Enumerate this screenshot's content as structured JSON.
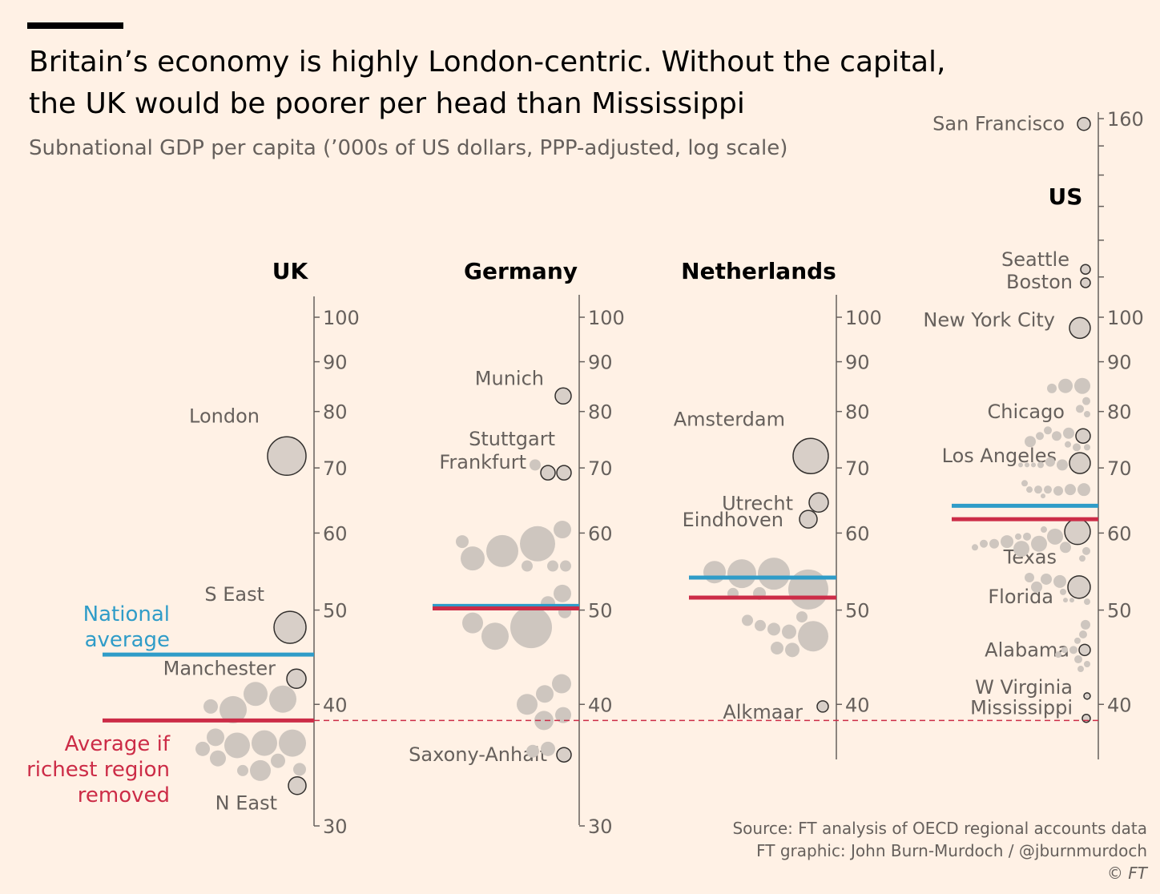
{
  "header": {
    "title": "Britain’s economy is highly London-centric. Without the capital, the UK would be poorer per head than Mississippi",
    "subtitle": "Subnational GDP per capita (’000s of US dollars, PPP-adjusted, log scale)"
  },
  "source": {
    "line1": "Source: FT analysis of OECD regional accounts data",
    "line2": "FT graphic: John Burn-Murdoch / @jburnmurdoch",
    "line3": "© FT"
  },
  "colors": {
    "background": "#FFF1E5",
    "national_average": "#2F9CC8",
    "average_without_richest": "#CC2C47",
    "bubble_labelled": "#D8CFC8",
    "bubble_unlabelled": "#CEC6BF",
    "axis": "#66605C"
  },
  "chart_data": {
    "type": "scatter",
    "scale": "log",
    "legend": {
      "national_average": "National average",
      "average_without_richest": "Average if richest region removed"
    },
    "reference_line": {
      "value": 38.5,
      "style": "dashed",
      "color": "#CC2C47"
    },
    "panels": [
      {
        "name": "UK",
        "ticks": [
          100,
          90,
          80,
          70,
          60,
          50,
          40,
          30
        ],
        "ylim": [
          30,
          100
        ],
        "national_average": 45,
        "average_without_richest": 38.5,
        "labelled": [
          {
            "label": "London",
            "value": 72,
            "size": 24
          },
          {
            "label": "S East",
            "value": 48,
            "size": 20
          },
          {
            "label": "Manchester",
            "value": 42.5,
            "size": 12
          },
          {
            "label": "N East",
            "value": 33,
            "size": 11
          }
        ],
        "regions": [
          {
            "value": 40.5,
            "size": 17
          },
          {
            "value": 41,
            "size": 15
          },
          {
            "value": 39.5,
            "size": 17
          },
          {
            "value": 39.8,
            "size": 9
          },
          {
            "value": 36.5,
            "size": 17
          },
          {
            "value": 36.5,
            "size": 16
          },
          {
            "value": 36.3,
            "size": 16
          },
          {
            "value": 37,
            "size": 11
          },
          {
            "value": 36,
            "size": 9
          },
          {
            "value": 35.2,
            "size": 10
          },
          {
            "value": 35,
            "size": 9
          },
          {
            "value": 34.2,
            "size": 13
          },
          {
            "value": 34.3,
            "size": 8
          },
          {
            "value": 34.2,
            "size": 7
          }
        ]
      },
      {
        "name": "Germany",
        "ticks": [
          100,
          90,
          80,
          70,
          60,
          50,
          40,
          30
        ],
        "ylim": [
          30,
          100
        ],
        "national_average": 50.5,
        "average_without_richest": 50.2,
        "labelled": [
          {
            "label": "Munich",
            "value": 83,
            "size": 10
          },
          {
            "label": "Stuttgart",
            "value": 69.2,
            "size": 9
          },
          {
            "label": "Frankfurt",
            "value": 69.2,
            "size": 9
          }
        ],
        "lowest": {
          "label": "Saxony-Anhalt",
          "value": 35.5,
          "size": 9
        },
        "regions": [
          {
            "value": 70.5,
            "size": 7
          },
          {
            "value": 60.5,
            "size": 11
          },
          {
            "value": 58.5,
            "size": 22
          },
          {
            "value": 57.5,
            "size": 20
          },
          {
            "value": 56.5,
            "size": 15
          },
          {
            "value": 58.8,
            "size": 8
          },
          {
            "value": 55.5,
            "size": 7
          },
          {
            "value": 55.5,
            "size": 7
          },
          {
            "value": 55.5,
            "size": 7
          },
          {
            "value": 52,
            "size": 11
          },
          {
            "value": 50.8,
            "size": 9
          },
          {
            "value": 48,
            "size": 26
          },
          {
            "value": 47,
            "size": 17
          },
          {
            "value": 48.5,
            "size": 13
          },
          {
            "value": 49.8,
            "size": 8
          },
          {
            "value": 42,
            "size": 12
          },
          {
            "value": 41,
            "size": 11
          },
          {
            "value": 40,
            "size": 13
          },
          {
            "value": 39,
            "size": 10
          },
          {
            "value": 38.5,
            "size": 12
          },
          {
            "value": 36,
            "size": 9
          },
          {
            "value": 35.8,
            "size": 8
          }
        ]
      },
      {
        "name": "Netherlands",
        "ticks": [
          100,
          90,
          80,
          70,
          60,
          50,
          40
        ],
        "ylim": [
          30,
          100
        ],
        "national_average": 54,
        "average_without_richest": 51.5,
        "labelled": [
          {
            "label": "Amsterdam",
            "value": 72,
            "size": 22
          },
          {
            "label": "Utrecht",
            "value": 64.5,
            "size": 12
          },
          {
            "label": "Eindhoven",
            "value": 62,
            "size": 11
          },
          {
            "label": "Alkmaar",
            "value": 39.8,
            "size": 7
          }
        ],
        "regions": [
          {
            "value": 52.5,
            "size": 25
          },
          {
            "value": 54.5,
            "size": 20
          },
          {
            "value": 54.5,
            "size": 18
          },
          {
            "value": 54.7,
            "size": 14
          },
          {
            "value": 52,
            "size": 8
          },
          {
            "value": 52,
            "size": 7
          },
          {
            "value": 47,
            "size": 19
          },
          {
            "value": 47.5,
            "size": 9
          },
          {
            "value": 47.8,
            "size": 8
          },
          {
            "value": 48.2,
            "size": 7
          },
          {
            "value": 48.8,
            "size": 7
          },
          {
            "value": 49.2,
            "size": 7
          },
          {
            "value": 45.5,
            "size": 9
          },
          {
            "value": 45.7,
            "size": 8
          }
        ]
      },
      {
        "name": "US",
        "ticks": [
          160,
          100,
          90,
          80,
          70,
          60,
          50,
          40
        ],
        "ylim": [
          30,
          160
        ],
        "national_average": 64,
        "average_without_richest": 62,
        "labelled": [
          {
            "label": "San Francisco",
            "value": 158,
            "size": 8
          },
          {
            "label": "Seattle",
            "value": 112,
            "size": 6
          },
          {
            "label": "Boston",
            "value": 108.5,
            "size": 6
          },
          {
            "label": "New York City",
            "value": 97.5,
            "size": 13
          },
          {
            "label": "Chicago",
            "value": 75.5,
            "size": 9
          },
          {
            "label": "Los Angeles",
            "value": 70.8,
            "size": 13
          },
          {
            "label": "Texas",
            "value": 60.2,
            "size": 16
          },
          {
            "label": "Florida",
            "value": 52.8,
            "size": 14
          },
          {
            "label": "Alabama",
            "value": 45.5,
            "size": 7
          },
          {
            "label": "W Virginia",
            "value": 40.8,
            "size": 4
          },
          {
            "label": "Mississippi",
            "value": 38.7,
            "size": 5
          }
        ],
        "regions": [
          {
            "value": 85,
            "size": 10
          },
          {
            "value": 85,
            "size": 9
          },
          {
            "value": 84.5,
            "size": 6
          },
          {
            "value": 82,
            "size": 5
          },
          {
            "value": 80.5,
            "size": 5
          },
          {
            "value": 79.5,
            "size": 4
          },
          {
            "value": 76,
            "size": 7
          },
          {
            "value": 75.5,
            "size": 6
          },
          {
            "value": 76.5,
            "size": 5
          },
          {
            "value": 75.5,
            "size": 5
          },
          {
            "value": 74.5,
            "size": 7
          },
          {
            "value": 73.5,
            "size": 5
          },
          {
            "value": 74,
            "size": 4
          },
          {
            "value": 73.5,
            "size": 4
          },
          {
            "value": 70.5,
            "size": 7
          },
          {
            "value": 71,
            "size": 6
          },
          {
            "value": 70.5,
            "size": 4
          },
          {
            "value": 70.5,
            "size": 3
          },
          {
            "value": 70.5,
            "size": 3
          },
          {
            "value": 70.5,
            "size": 3
          },
          {
            "value": 66.5,
            "size": 8
          },
          {
            "value": 66.5,
            "size": 7
          },
          {
            "value": 66.3,
            "size": 6
          },
          {
            "value": 66.5,
            "size": 5
          },
          {
            "value": 66.5,
            "size": 5
          },
          {
            "value": 66.5,
            "size": 4
          },
          {
            "value": 67.5,
            "size": 4
          },
          {
            "value": 65.5,
            "size": 3
          },
          {
            "value": 59.5,
            "size": 10
          },
          {
            "value": 58.5,
            "size": 10
          },
          {
            "value": 57.8,
            "size": 10
          },
          {
            "value": 58.8,
            "size": 8
          },
          {
            "value": 58,
            "size": 7
          },
          {
            "value": 58.5,
            "size": 6
          },
          {
            "value": 58.5,
            "size": 5
          },
          {
            "value": 59.5,
            "size": 5
          },
          {
            "value": 57.5,
            "size": 5
          },
          {
            "value": 58,
            "size": 4
          },
          {
            "value": 60.5,
            "size": 4
          },
          {
            "value": 59.5,
            "size": 4
          },
          {
            "value": 56.5,
            "size": 4
          },
          {
            "value": 53.5,
            "size": 8
          },
          {
            "value": 53.8,
            "size": 7
          },
          {
            "value": 52.8,
            "size": 7
          },
          {
            "value": 54,
            "size": 6
          },
          {
            "value": 52.2,
            "size": 4
          },
          {
            "value": 51,
            "size": 4
          },
          {
            "value": 51.2,
            "size": 3
          },
          {
            "value": 51.2,
            "size": 3
          },
          {
            "value": 48.3,
            "size": 6
          },
          {
            "value": 47.2,
            "size": 5
          },
          {
            "value": 46.5,
            "size": 4
          },
          {
            "value": 45.5,
            "size": 5
          },
          {
            "value": 45.5,
            "size": 4
          },
          {
            "value": 45,
            "size": 4
          },
          {
            "value": 44.5,
            "size": 5
          },
          {
            "value": 44,
            "size": 4
          },
          {
            "value": 43.5,
            "size": 4
          }
        ]
      }
    ]
  }
}
